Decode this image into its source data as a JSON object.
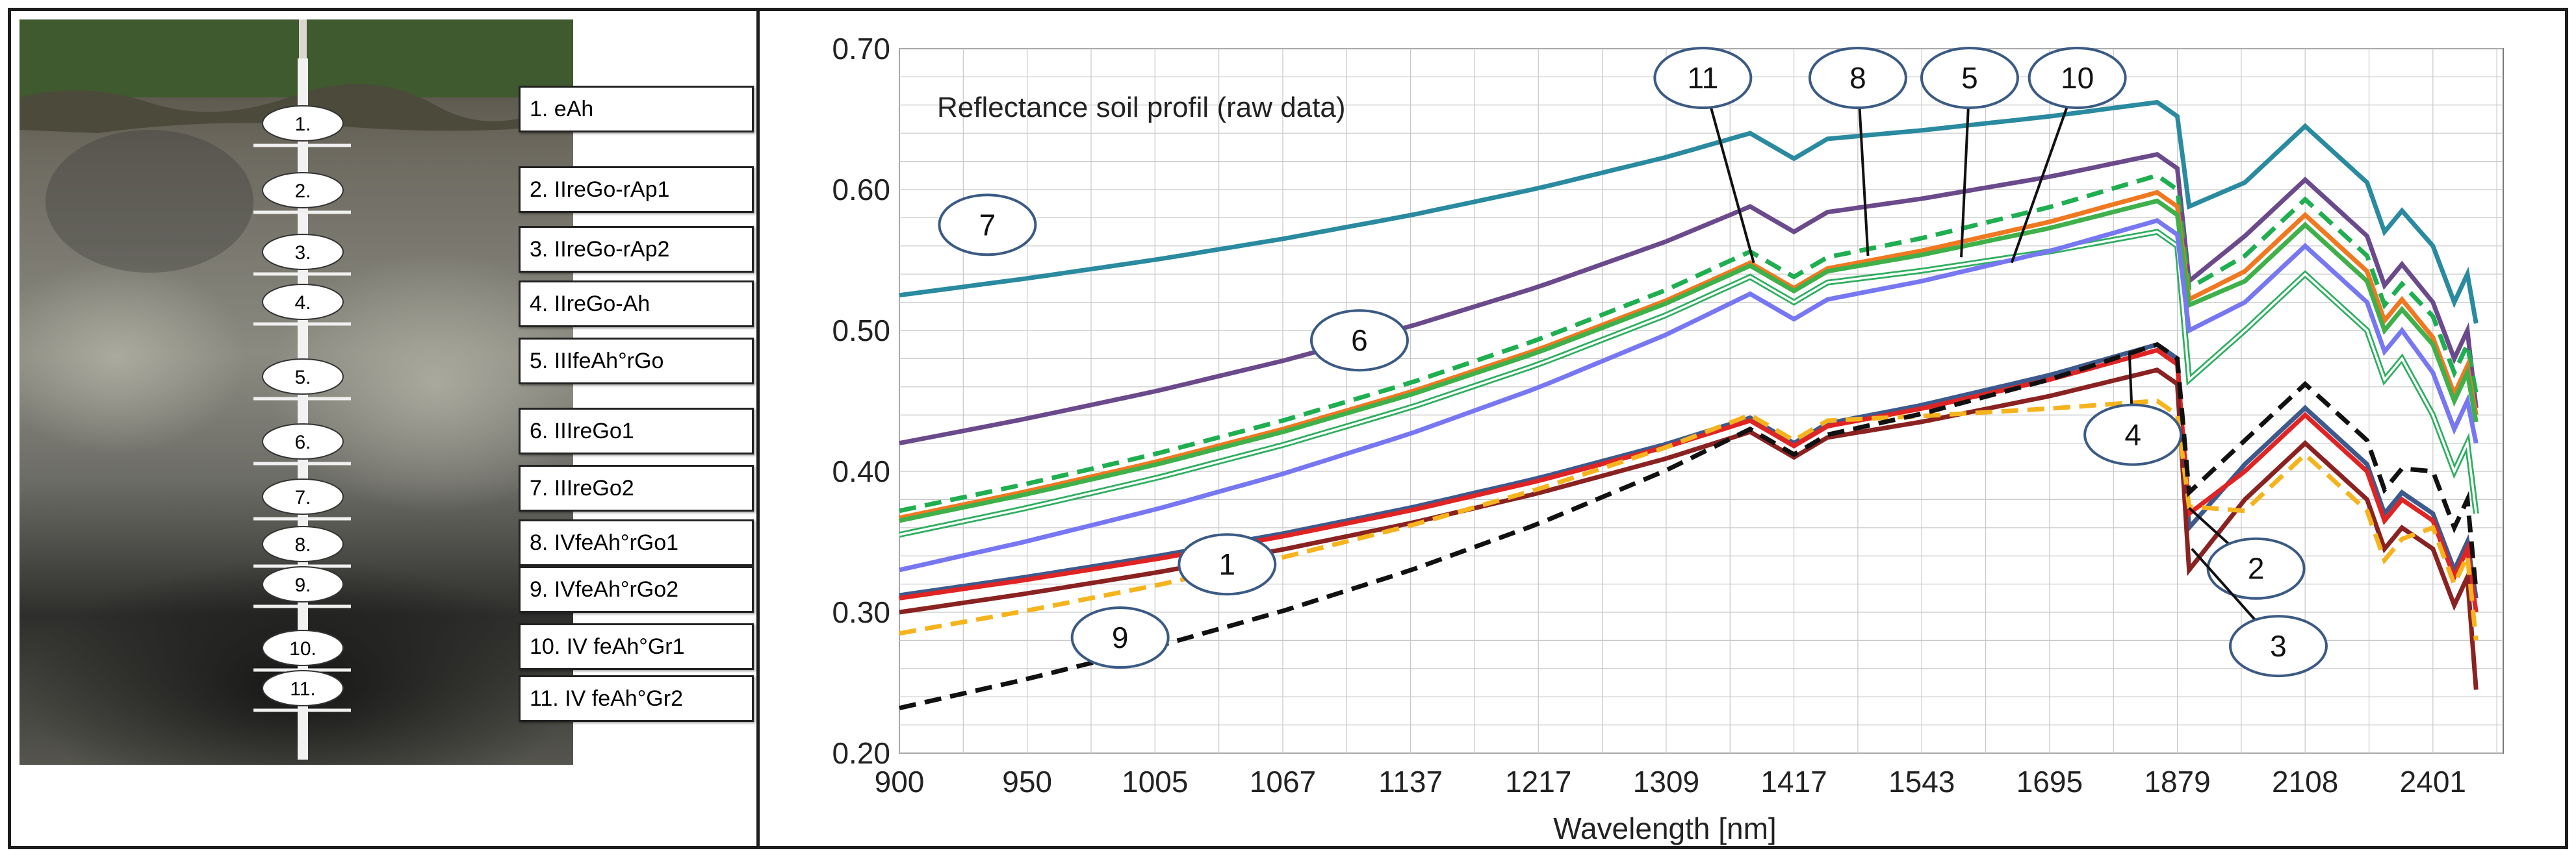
{
  "horizons": [
    {
      "num": "1.",
      "label": "1.  eAh"
    },
    {
      "num": "2.",
      "label": "2.  IIreGo-rAp1"
    },
    {
      "num": "3.",
      "label": "3.  IIreGo-rAp2"
    },
    {
      "num": "4.",
      "label": "4.  IIreGo-Ah"
    },
    {
      "num": "5.",
      "label": "5.  IIIfeAh°rGo"
    },
    {
      "num": "6.",
      "label": "6.  IIIreGo1"
    },
    {
      "num": "7.",
      "label": "7.  IIIreGo2"
    },
    {
      "num": "8.",
      "label": "8.  IVfeAh°rGo1"
    },
    {
      "num": "9.",
      "label": "9.  IVfeAh°rGo2"
    },
    {
      "num": "10.",
      "label": "10. IV feAh°Gr1"
    },
    {
      "num": "11.",
      "label": "11. IV feAh°Gr2"
    }
  ],
  "chart_data": {
    "type": "line",
    "title": "Reflectance soil profil (raw data)",
    "xlabel": "Wavelength [nm]",
    "ylabel": "",
    "x_tick_labels": [
      "900",
      "950",
      "1005",
      "1067",
      "1137",
      "1217",
      "1309",
      "1417",
      "1543",
      "1695",
      "1879",
      "2108",
      "2401"
    ],
    "y_tick_labels": [
      "0.20",
      "0.30",
      "0.40",
      "0.50",
      "0.60",
      "0.70"
    ],
    "ylim": [
      0.2,
      0.7
    ],
    "grid": true,
    "x": [
      900,
      1417,
      1879,
      1900,
      2108,
      2401,
      2500
    ],
    "series": [
      {
        "name": "7",
        "color": "#2a8a9f",
        "dash": false,
        "double": false,
        "values": [
          0.525,
          0.622,
          0.662,
          0.588,
          0.645,
          0.56,
          0.505
        ]
      },
      {
        "name": "6",
        "color": "#6b4a8c",
        "dash": false,
        "double": false,
        "values": [
          0.42,
          0.57,
          0.625,
          0.535,
          0.607,
          0.52,
          0.445
        ]
      },
      {
        "name": "11",
        "color": "#1fae50",
        "dash": true,
        "double": false,
        "values": [
          0.372,
          0.538,
          0.61,
          0.53,
          0.593,
          0.51,
          0.455
        ]
      },
      {
        "name": "8",
        "color": "#f07820",
        "dash": false,
        "double": false,
        "values": [
          0.367,
          0.53,
          0.598,
          0.522,
          0.582,
          0.495,
          0.44
        ]
      },
      {
        "name": "5",
        "color": "#3fb04a",
        "dash": false,
        "double": false,
        "values": [
          0.365,
          0.528,
          0.592,
          0.518,
          0.575,
          0.49,
          0.435
        ]
      },
      {
        "name": "10",
        "color": "#2fae60",
        "dash": false,
        "double": true,
        "values": [
          0.355,
          0.52,
          0.57,
          0.465,
          0.54,
          0.44,
          0.37
        ]
      },
      {
        "name": "blue",
        "color": "#7777f2",
        "dash": false,
        "double": false,
        "values": [
          0.33,
          0.508,
          0.578,
          0.5,
          0.56,
          0.47,
          0.42
        ]
      },
      {
        "name": "1",
        "color": "#3e5a8c",
        "dash": false,
        "double": false,
        "values": [
          0.312,
          0.42,
          0.49,
          0.36,
          0.445,
          0.37,
          0.31
        ]
      },
      {
        "name": "2",
        "color": "#e02424",
        "dash": false,
        "double": false,
        "values": [
          0.31,
          0.418,
          0.486,
          0.37,
          0.44,
          0.365,
          0.3
        ]
      },
      {
        "name": "3",
        "color": "#8a2222",
        "dash": false,
        "double": false,
        "values": [
          0.3,
          0.41,
          0.472,
          0.33,
          0.42,
          0.345,
          0.245
        ]
      },
      {
        "name": "9",
        "color": "#f5b41e",
        "dash": true,
        "double": false,
        "values": [
          0.285,
          0.422,
          0.45,
          0.375,
          0.412,
          0.36,
          0.28
        ]
      },
      {
        "name": "4",
        "color": "#111111",
        "dash": true,
        "double": false,
        "values": [
          0.232,
          0.412,
          0.49,
          0.385,
          0.462,
          0.4,
          0.315
        ]
      }
    ],
    "annotations": [
      "11",
      "8",
      "5",
      "10",
      "7",
      "6",
      "1",
      "9",
      "4",
      "2",
      "3"
    ]
  }
}
